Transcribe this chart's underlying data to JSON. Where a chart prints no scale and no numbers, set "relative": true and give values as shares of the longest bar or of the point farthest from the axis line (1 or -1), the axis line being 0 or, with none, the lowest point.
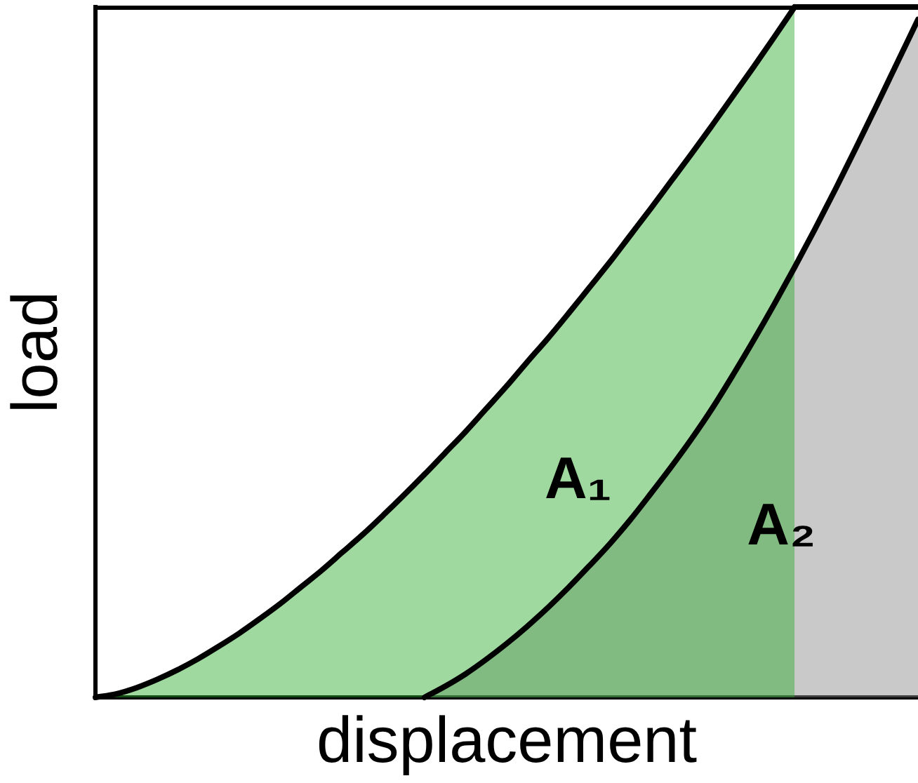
{
  "chart_data": {
    "type": "area",
    "xlabel": "displacement",
    "ylabel": "load",
    "relative": true,
    "tick_labels": false,
    "categories": [
      null,
      null,
      null,
      null,
      null,
      null,
      null,
      null,
      null,
      null,
      null,
      null,
      null,
      null,
      null,
      null,
      null,
      null,
      null,
      null,
      null,
      null,
      null,
      null,
      null,
      null,
      null,
      null,
      null,
      null,
      null,
      null,
      null,
      null,
      null,
      null,
      null,
      null,
      null,
      null,
      null
    ],
    "series": [
      {
        "color": "#2aaa2a",
        "values": [
          0,
          0.005,
          0.014,
          0.026,
          0.04,
          0.056,
          0.074,
          0.093,
          0.114,
          0.136,
          0.16,
          0.184,
          0.21,
          0.236,
          0.264,
          0.293,
          0.323,
          0.354,
          0.385,
          0.418,
          0.451,
          0.486,
          0.52,
          0.556,
          0.593,
          0.63,
          0.669,
          0.708,
          0.748,
          0.788,
          0.829,
          0.871,
          0.913,
          0.956,
          1,
          null,
          null,
          null,
          null,
          null,
          null
        ]
      },
      {
        "color": "#888888",
        "values": [
          null,
          null,
          null,
          null,
          null,
          null,
          null,
          null,
          null,
          null,
          null,
          null,
          null,
          null,
          null,
          null,
          0,
          0.016,
          0.034,
          0.055,
          0.078,
          0.103,
          0.13,
          0.159,
          0.19,
          0.222,
          0.257,
          0.295,
          0.334,
          0.375,
          0.419,
          0.467,
          0.517,
          0.569,
          0.623,
          0.679,
          0.737,
          0.797,
          0.858,
          0.92,
          0.982
        ]
      },
      {
        "type": "line",
        "color": "#000000",
        "values": [
          null,
          null,
          null,
          null,
          null,
          null,
          null,
          null,
          null,
          null,
          null,
          null,
          null,
          null,
          null,
          null,
          null,
          null,
          null,
          null,
          null,
          null,
          null,
          null,
          null,
          null,
          null,
          null,
          null,
          null,
          null,
          null,
          null,
          null,
          1,
          1,
          1,
          1,
          1,
          1,
          1
        ]
      }
    ],
    "annotations": [
      "A₁",
      "A₂"
    ]
  }
}
